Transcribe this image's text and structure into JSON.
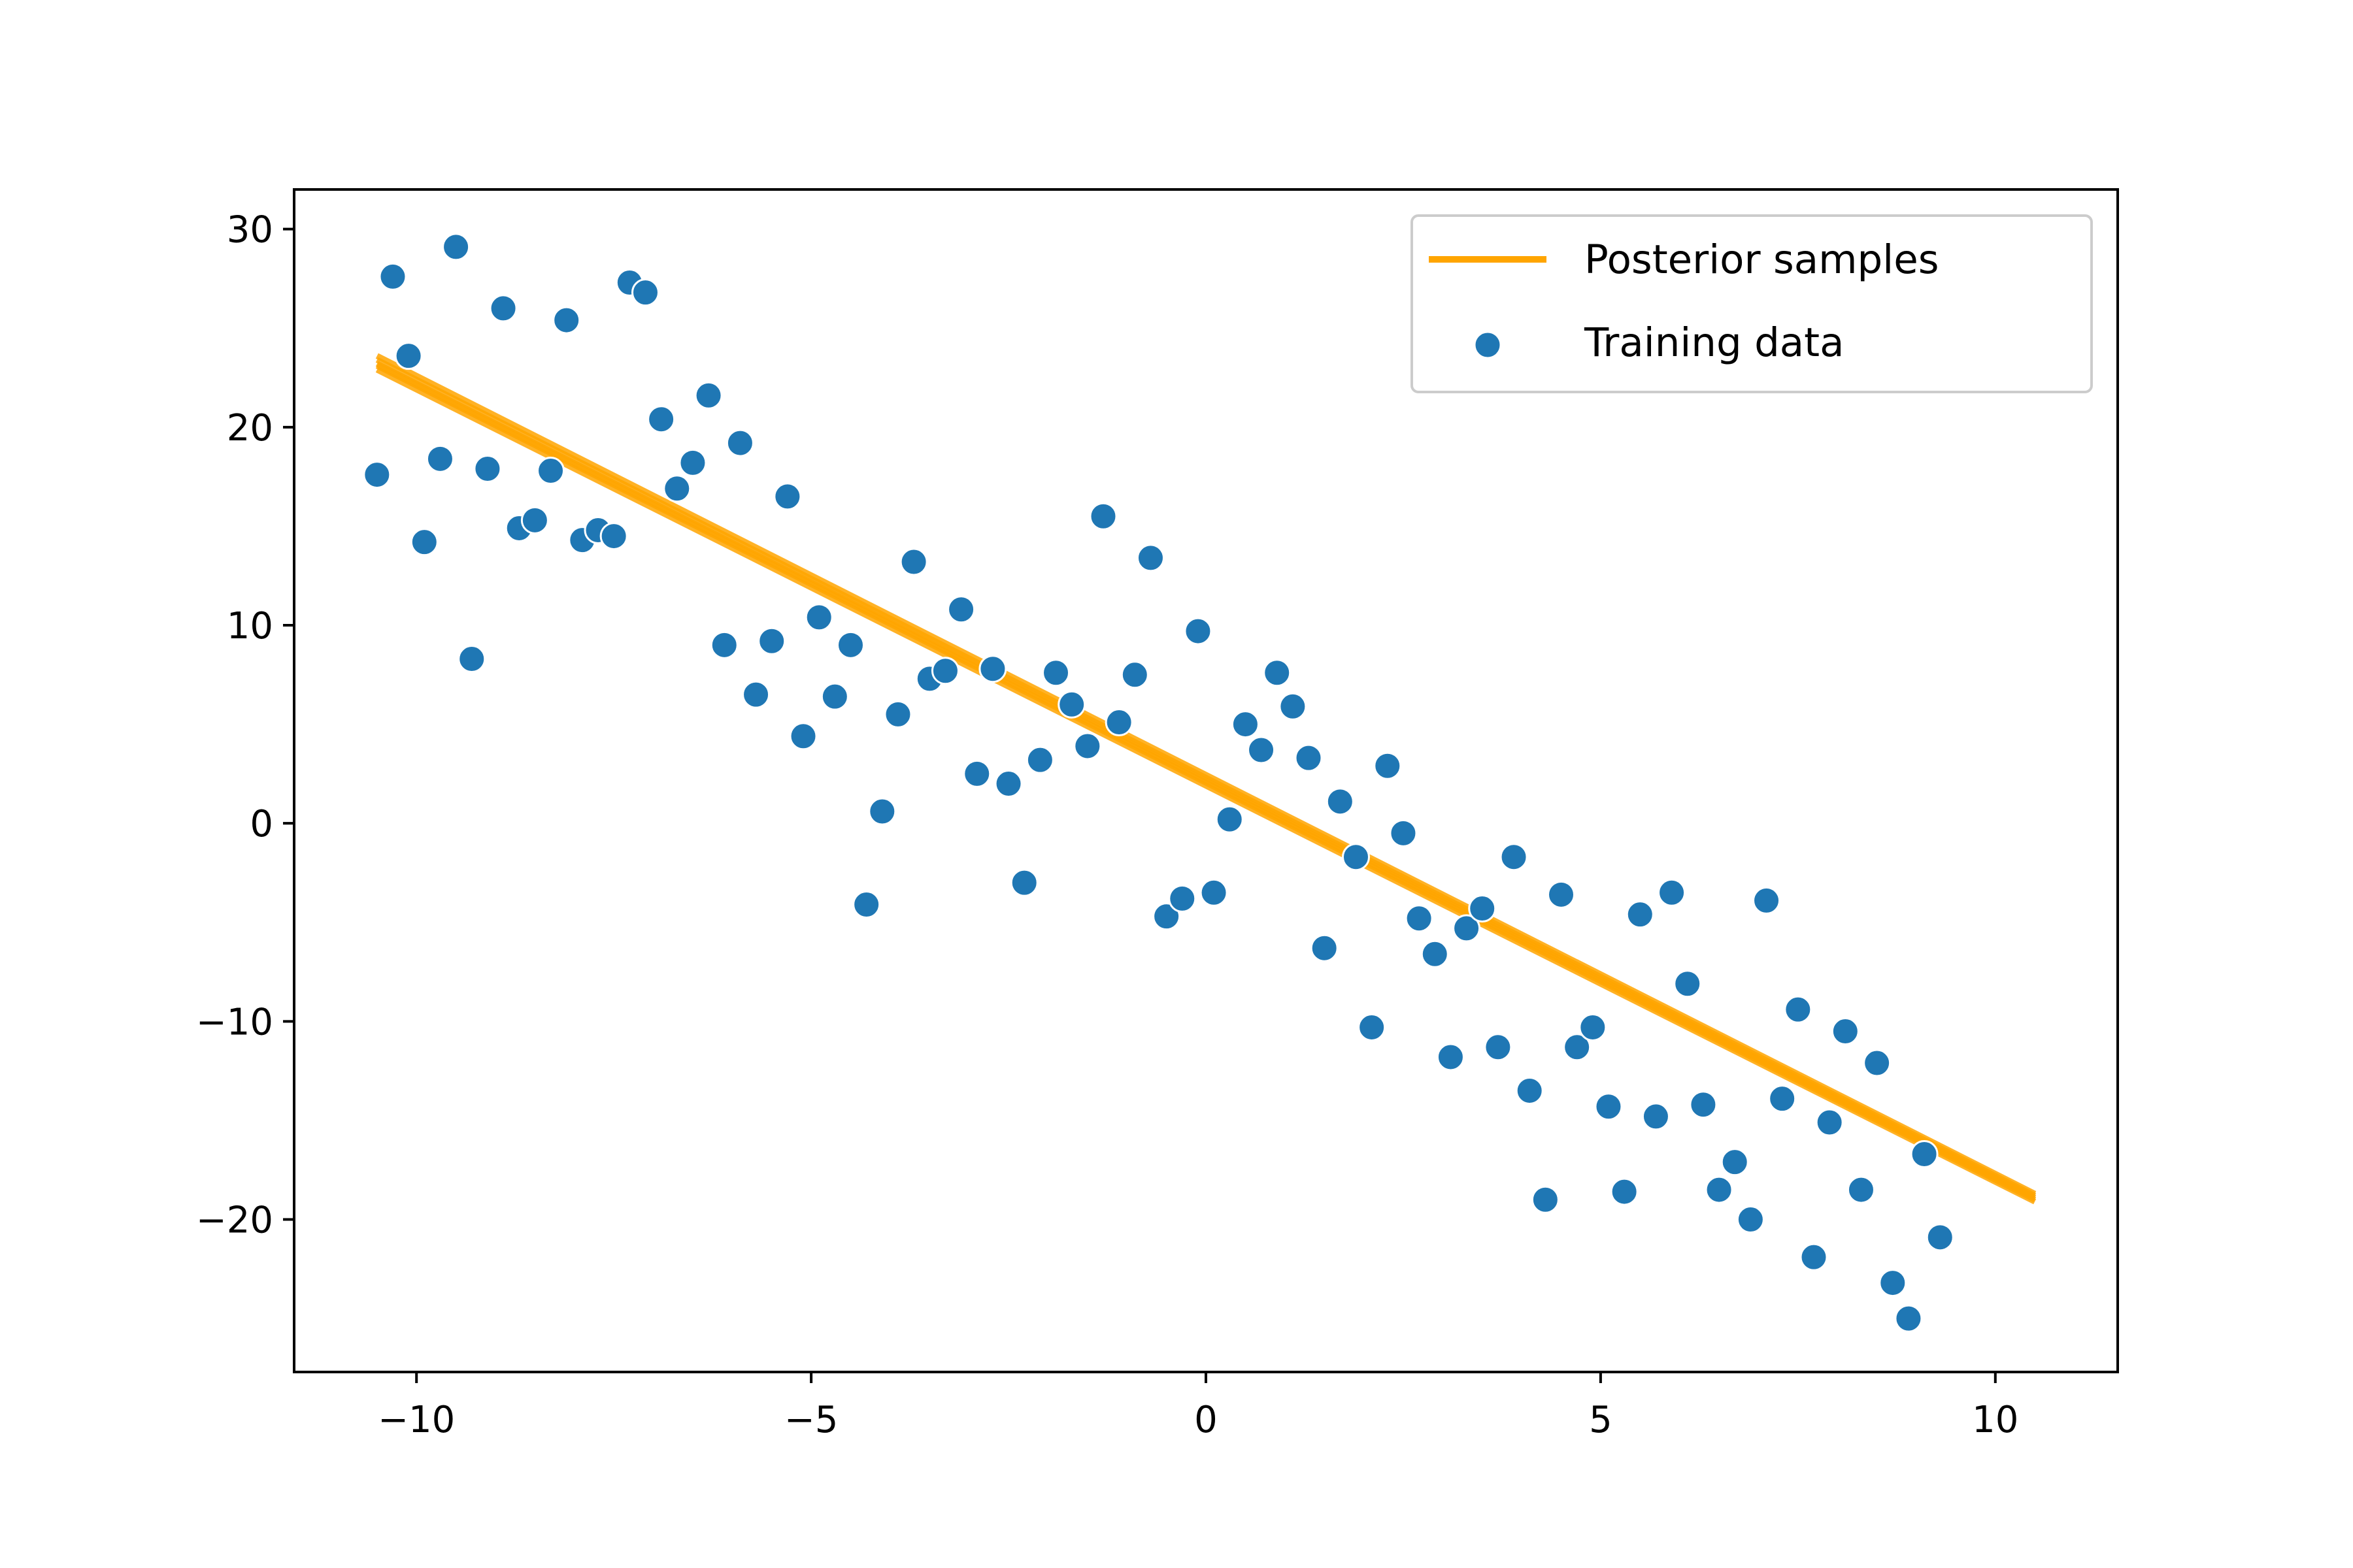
{
  "chart_data": {
    "type": "scatter",
    "title": "",
    "xlabel": "",
    "ylabel": "",
    "xlim": [
      -11.55,
      11.55
    ],
    "ylim": [
      -27.7,
      32.0
    ],
    "grid": false,
    "legend_position": "top-right",
    "x_ticks": [
      -10,
      -5,
      0,
      5,
      10
    ],
    "x_tick_labels": [
      "−10",
      "−5",
      "0",
      "5",
      "10"
    ],
    "y_ticks": [
      -20,
      -10,
      0,
      10,
      20,
      30
    ],
    "y_tick_labels": [
      "−20",
      "−10",
      "0",
      "10",
      "20",
      "30"
    ],
    "colors": {
      "scatter": "#1f77b4",
      "line": "#ffa500"
    },
    "series": [
      {
        "name": "Posterior samples",
        "kind": "line",
        "lines": [
          {
            "x": [
              -10.5,
              10.5
            ],
            "y": [
              23.4,
              -18.8
            ]
          },
          {
            "x": [
              -10.5,
              10.5
            ],
            "y": [
              23.1,
              -19.0
            ]
          },
          {
            "x": [
              -10.5,
              10.5
            ],
            "y": [
              23.2,
              -18.9
            ]
          },
          {
            "x": [
              -10.5,
              10.5
            ],
            "y": [
              22.9,
              -19.1
            ]
          },
          {
            "x": [
              -10.5,
              10.5
            ],
            "y": [
              23.6,
              -18.7
            ]
          }
        ]
      },
      {
        "name": "Training data",
        "kind": "scatter",
        "points": [
          [
            -10.5,
            17.6
          ],
          [
            -10.3,
            27.6
          ],
          [
            -10.1,
            23.6
          ],
          [
            -9.9,
            14.2
          ],
          [
            -9.7,
            18.4
          ],
          [
            -9.5,
            29.1
          ],
          [
            -9.3,
            8.3
          ],
          [
            -9.1,
            17.9
          ],
          [
            -8.9,
            26.0
          ],
          [
            -8.7,
            14.9
          ],
          [
            -8.5,
            15.3
          ],
          [
            -8.3,
            17.8
          ],
          [
            -8.1,
            25.4
          ],
          [
            -7.9,
            14.3
          ],
          [
            -7.7,
            14.8
          ],
          [
            -7.5,
            14.5
          ],
          [
            -7.3,
            27.3
          ],
          [
            -7.1,
            26.8
          ],
          [
            -6.9,
            20.4
          ],
          [
            -6.7,
            16.9
          ],
          [
            -6.5,
            18.2
          ],
          [
            -6.3,
            21.6
          ],
          [
            -6.1,
            9.0
          ],
          [
            -5.9,
            19.2
          ],
          [
            -5.7,
            6.5
          ],
          [
            -5.5,
            9.2
          ],
          [
            -5.3,
            16.5
          ],
          [
            -5.1,
            4.4
          ],
          [
            -4.9,
            10.4
          ],
          [
            -4.7,
            6.4
          ],
          [
            -4.5,
            9.0
          ],
          [
            -4.3,
            -4.1
          ],
          [
            -4.1,
            0.6
          ],
          [
            -3.9,
            5.5
          ],
          [
            -3.7,
            13.2
          ],
          [
            -3.5,
            7.3
          ],
          [
            -3.3,
            7.7
          ],
          [
            -3.1,
            10.8
          ],
          [
            -2.9,
            2.5
          ],
          [
            -2.7,
            7.8
          ],
          [
            -2.5,
            2.0
          ],
          [
            -2.3,
            -3.0
          ],
          [
            -2.1,
            3.2
          ],
          [
            -1.9,
            7.6
          ],
          [
            -1.7,
            6.0
          ],
          [
            -1.5,
            3.9
          ],
          [
            -1.3,
            15.5
          ],
          [
            -1.1,
            5.1
          ],
          [
            -0.9,
            7.5
          ],
          [
            -0.7,
            13.4
          ],
          [
            -0.5,
            -4.7
          ],
          [
            -0.3,
            -3.8
          ],
          [
            -0.1,
            9.7
          ],
          [
            0.1,
            -3.5
          ],
          [
            0.3,
            0.2
          ],
          [
            0.5,
            5.0
          ],
          [
            0.7,
            3.7
          ],
          [
            0.9,
            7.6
          ],
          [
            1.1,
            5.9
          ],
          [
            1.3,
            3.3
          ],
          [
            1.5,
            -6.3
          ],
          [
            1.7,
            1.1
          ],
          [
            1.9,
            -1.7
          ],
          [
            2.1,
            -10.3
          ],
          [
            2.3,
            2.9
          ],
          [
            2.5,
            -0.5
          ],
          [
            2.7,
            -4.8
          ],
          [
            2.9,
            -6.6
          ],
          [
            3.1,
            -11.8
          ],
          [
            3.3,
            -5.3
          ],
          [
            3.5,
            -4.3
          ],
          [
            3.7,
            -11.3
          ],
          [
            3.9,
            -1.7
          ],
          [
            4.1,
            -13.5
          ],
          [
            4.3,
            -19.0
          ],
          [
            4.5,
            -3.6
          ],
          [
            4.7,
            -11.3
          ],
          [
            4.9,
            -10.3
          ],
          [
            5.1,
            -14.3
          ],
          [
            5.3,
            -18.6
          ],
          [
            5.5,
            -4.6
          ],
          [
            5.7,
            -14.8
          ],
          [
            5.9,
            -3.5
          ],
          [
            6.1,
            -8.1
          ],
          [
            6.3,
            -14.2
          ],
          [
            6.5,
            -18.5
          ],
          [
            6.7,
            -17.1
          ],
          [
            6.9,
            -20.0
          ],
          [
            7.1,
            -3.9
          ],
          [
            7.3,
            -13.9
          ],
          [
            7.5,
            -9.4
          ],
          [
            7.7,
            -21.9
          ],
          [
            7.9,
            -15.1
          ],
          [
            8.1,
            -10.5
          ],
          [
            8.3,
            -18.5
          ],
          [
            8.5,
            -12.1
          ],
          [
            8.7,
            -23.2
          ],
          [
            8.9,
            -25.0
          ],
          [
            9.1,
            -16.7
          ],
          [
            9.3,
            -20.9
          ]
        ]
      }
    ]
  }
}
